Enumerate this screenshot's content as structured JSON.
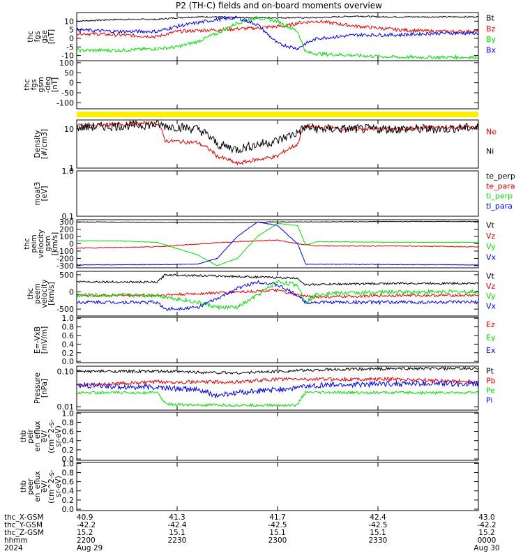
{
  "title": "P2 (TH-C) fields and on-board moments overview",
  "colors": {
    "black": "#000000",
    "red": "#e00000",
    "green": "#00dd00",
    "blue": "#0000e0",
    "yellow": "#ffee00"
  },
  "chart_data": [
    {
      "type": "line",
      "id": "fgs",
      "ylabel": [
        "thc",
        "fgs",
        "gse",
        "[nT]"
      ],
      "ylim": [
        -13,
        15
      ],
      "yticks": [
        -10,
        -5,
        0,
        5,
        10
      ],
      "series": [
        {
          "name": "Bt",
          "color": "black",
          "x": [
            0,
            0.05,
            0.1,
            0.2,
            0.25,
            0.3,
            0.35,
            0.4,
            0.5,
            0.6,
            0.7,
            0.75,
            0.8,
            0.9,
            1
          ],
          "y": [
            10,
            10.5,
            11,
            11,
            12,
            12.5,
            12.5,
            12,
            12,
            12,
            13,
            12.5,
            12.5,
            12.5,
            12.5
          ],
          "noise": 0.4
        },
        {
          "name": "Bz",
          "color": "red",
          "x": [
            0,
            0.1,
            0.2,
            0.25,
            0.35,
            0.45,
            0.5,
            0.52,
            0.55,
            0.6,
            0.7,
            0.8,
            0.9,
            1
          ],
          "y": [
            3,
            2,
            1,
            4,
            5,
            6,
            7,
            7,
            9,
            10,
            7,
            5,
            4,
            4
          ],
          "noise": 1.0
        },
        {
          "name": "By",
          "color": "green",
          "x": [
            0,
            0.1,
            0.2,
            0.25,
            0.3,
            0.35,
            0.4,
            0.45,
            0.5,
            0.55,
            0.57,
            0.6,
            0.7,
            0.8,
            0.9,
            1
          ],
          "y": [
            -7,
            -7,
            -6,
            -5,
            -2,
            3,
            9,
            12,
            10,
            4,
            -8,
            -9,
            -10,
            -11,
            -11,
            -11
          ],
          "noise": 1.0
        },
        {
          "name": "Bx",
          "color": "blue",
          "x": [
            0,
            0.1,
            0.2,
            0.25,
            0.3,
            0.35,
            0.4,
            0.45,
            0.5,
            0.55,
            0.57,
            0.6,
            0.7,
            0.8,
            0.9,
            1
          ],
          "y": [
            5,
            4,
            4,
            7,
            9,
            11,
            12,
            8,
            -3,
            -6,
            -3,
            0,
            2,
            2,
            3,
            3
          ],
          "noise": 1.0
        }
      ]
    },
    {
      "type": "line",
      "id": "fgs_deg",
      "ylabel": [
        "thc",
        "fgs",
        "gsm",
        "-deg",
        "[nT]"
      ],
      "ylim": [
        -130,
        110
      ],
      "yticks": [
        -100,
        -50,
        0,
        50,
        100
      ],
      "series": []
    },
    {
      "type": "bar",
      "id": "mode_bar",
      "series": [
        {
          "name": "",
          "color": "yellow",
          "x": [
            0,
            1
          ],
          "y": [
            1,
            1
          ]
        }
      ]
    },
    {
      "type": "line",
      "id": "density",
      "ylabel": [
        "Density",
        "[#/cm3]"
      ],
      "scale": "log",
      "ylim": [
        1,
        17
      ],
      "yticks": [
        1,
        10
      ],
      "series": [
        {
          "name": "Ne",
          "color": "red",
          "x": [
            0,
            0.1,
            0.2,
            0.22,
            0.3,
            0.35,
            0.4,
            0.5,
            0.55,
            0.57,
            0.6,
            0.7,
            0.8,
            0.9,
            1
          ],
          "y": [
            12,
            13,
            14,
            5,
            4.5,
            2,
            1.3,
            2,
            4,
            12,
            11,
            10,
            10,
            11,
            11
          ],
          "noise": 0.05
        },
        {
          "name": "Ni",
          "color": "black",
          "x": [
            0,
            0.1,
            0.2,
            0.22,
            0.3,
            0.35,
            0.4,
            0.5,
            0.55,
            0.57,
            0.6,
            0.7,
            0.8,
            0.9,
            1
          ],
          "y": [
            11,
            12,
            13,
            12,
            10,
            4,
            3,
            5,
            8,
            11,
            10,
            10,
            10,
            10,
            11
          ],
          "noise": 0.12
        }
      ]
    },
    {
      "type": "line",
      "id": "temperature",
      "ylabel": [
        "moat3",
        "[eV]"
      ],
      "scale": "log",
      "ylim": [
        0.1,
        1
      ],
      "yticks": [
        0.1,
        1
      ],
      "series": [
        {
          "name": "te_perp",
          "color": "black",
          "x": [],
          "y": []
        },
        {
          "name": "te_para",
          "color": "red",
          "x": [],
          "y": []
        },
        {
          "name": "ti_perp",
          "color": "green",
          "x": [],
          "y": []
        },
        {
          "name": "ti_para",
          "color": "blue",
          "x": [],
          "y": []
        }
      ]
    },
    {
      "type": "line",
      "id": "peim_velocity",
      "ylabel": [
        "thc",
        "peim",
        "velocity",
        "gsm",
        "[km/s]"
      ],
      "ylim": [
        -330,
        330
      ],
      "yticks": [
        -300,
        -200,
        -100,
        0,
        100,
        200,
        300
      ],
      "series": [
        {
          "name": "Vt",
          "color": "black",
          "x": [
            0,
            0.2,
            0.4,
            0.5,
            0.6,
            0.8,
            1
          ],
          "y": [
            300,
            295,
            290,
            300,
            300,
            305,
            305
          ],
          "noise": 4
        },
        {
          "name": "Vz",
          "color": "red",
          "x": [
            0,
            0.2,
            0.4,
            0.5,
            0.55,
            0.6,
            0.8,
            1
          ],
          "y": [
            -60,
            -40,
            30,
            50,
            0,
            -30,
            -30,
            -40
          ],
          "noise": 6
        },
        {
          "name": "Vy",
          "color": "green",
          "x": [
            0,
            0.1,
            0.2,
            0.3,
            0.35,
            0.4,
            0.45,
            0.5,
            0.55,
            0.57,
            0.6,
            0.8,
            1
          ],
          "y": [
            40,
            40,
            20,
            -150,
            -300,
            -200,
            100,
            280,
            250,
            -20,
            30,
            20,
            20
          ],
          "noise": 4
        },
        {
          "name": "Vx",
          "color": "blue",
          "x": [
            0,
            0.2,
            0.3,
            0.35,
            0.4,
            0.45,
            0.5,
            0.55,
            0.57,
            0.6,
            0.8,
            1
          ],
          "y": [
            -290,
            -285,
            -280,
            -200,
            100,
            300,
            250,
            0,
            -280,
            -280,
            -285,
            -290
          ],
          "noise": 4
        }
      ]
    },
    {
      "type": "line",
      "id": "peem_velocity",
      "ylabel": [
        "thc",
        "peem",
        "velocity",
        "[km/s]"
      ],
      "ylim": [
        -700,
        600
      ],
      "yticks": [
        -500,
        0,
        500
      ],
      "series": [
        {
          "name": "Vt",
          "color": "black",
          "x": [
            0,
            0.2,
            0.22,
            0.4,
            0.55,
            0.57,
            0.6,
            0.8,
            1
          ],
          "y": [
            300,
            280,
            500,
            450,
            400,
            200,
            220,
            250,
            250
          ],
          "noise": 30
        },
        {
          "name": "Vz",
          "color": "red",
          "x": [
            0,
            0.2,
            0.4,
            0.5,
            0.55,
            0.6,
            0.8,
            1
          ],
          "y": [
            -100,
            -100,
            0,
            50,
            -100,
            -150,
            -100,
            -100
          ],
          "noise": 40
        },
        {
          "name": "Vy",
          "color": "green",
          "x": [
            0,
            0.2,
            0.3,
            0.35,
            0.4,
            0.45,
            0.5,
            0.55,
            0.57,
            0.6,
            0.8,
            1
          ],
          "y": [
            -100,
            -100,
            -300,
            -450,
            -450,
            -100,
            300,
            200,
            -300,
            -50,
            0,
            0
          ],
          "noise": 60
        },
        {
          "name": "Vx",
          "color": "blue",
          "x": [
            0,
            0.2,
            0.22,
            0.3,
            0.35,
            0.4,
            0.45,
            0.5,
            0.55,
            0.57,
            0.6,
            0.8,
            1
          ],
          "y": [
            -300,
            -300,
            -500,
            -450,
            -200,
            100,
            300,
            200,
            -100,
            -300,
            -300,
            -300,
            -300
          ],
          "noise": 50
        }
      ]
    },
    {
      "type": "line",
      "id": "efield",
      "ylabel": [
        "E=-VxB",
        "[mV/m]"
      ],
      "ylim": [
        -0.03,
        1.02
      ],
      "yticks": [
        0,
        0.2,
        0.4,
        0.6,
        0.8,
        1.0
      ],
      "series": [
        {
          "name": "Ez",
          "color": "red",
          "x": [],
          "y": []
        },
        {
          "name": "Ey",
          "color": "green",
          "x": [],
          "y": []
        },
        {
          "name": "Ex",
          "color": "blue",
          "x": [],
          "y": []
        }
      ]
    },
    {
      "type": "line",
      "id": "pressure",
      "ylabel": [
        "Pressure",
        "[nPa]"
      ],
      "scale": "log",
      "ylim": [
        0.008,
        0.14
      ],
      "yticks": [
        0.01,
        0.1
      ],
      "series": [
        {
          "name": "Pt",
          "color": "black",
          "x": [
            0,
            0.2,
            0.4,
            0.6,
            0.8,
            1
          ],
          "y": [
            0.1,
            0.1,
            0.09,
            0.11,
            0.12,
            0.12
          ],
          "noise": 0.04
        },
        {
          "name": "Pb",
          "color": "red",
          "x": [
            0,
            0.2,
            0.4,
            0.5,
            0.6,
            0.8,
            1
          ],
          "y": [
            0.04,
            0.05,
            0.05,
            0.06,
            0.06,
            0.06,
            0.05
          ],
          "noise": 0.05
        },
        {
          "name": "Pe",
          "color": "green",
          "x": [
            0,
            0.2,
            0.22,
            0.3,
            0.55,
            0.57,
            0.8,
            1
          ],
          "y": [
            0.025,
            0.025,
            0.012,
            0.011,
            0.011,
            0.025,
            0.025,
            0.025
          ],
          "noise": 0.04
        },
        {
          "name": "Pi",
          "color": "blue",
          "x": [
            0,
            0.2,
            0.3,
            0.35,
            0.4,
            0.5,
            0.6,
            0.8,
            1
          ],
          "y": [
            0.04,
            0.035,
            0.03,
            0.02,
            0.025,
            0.03,
            0.04,
            0.045,
            0.045
          ],
          "noise": 0.08
        }
      ]
    },
    {
      "type": "line",
      "id": "peir_eflux",
      "ylabel": [
        "thb",
        "peir",
        "en_eflux",
        "eV/",
        "(cm^2-s-",
        "sr-eV)"
      ],
      "ylim": [
        -0.03,
        1.02
      ],
      "yticks": [
        0,
        0.2,
        0.4,
        0.6,
        0.8,
        1.0
      ],
      "series": []
    },
    {
      "type": "line",
      "id": "peer_eflux",
      "ylabel": [
        "thb",
        "peer",
        "en_eflux",
        "eV/",
        "(cm^2-s-",
        "sr-eV)"
      ],
      "ylim": [
        -0.03,
        1.02
      ],
      "yticks": [
        0,
        0.2,
        0.4,
        0.6,
        0.8,
        1.0
      ],
      "series": []
    }
  ],
  "footer": {
    "row_labels": [
      "thc_X-GSM",
      "thc_Y-GSM",
      "thc_Z-GSM",
      "hhmm",
      "2024"
    ],
    "ticks": [
      {
        "rows": [
          "40.9",
          "-42.2",
          "15.2",
          "2200",
          "Aug 29"
        ]
      },
      {
        "rows": [
          "41.3",
          "-42.4",
          "15.1",
          "2230",
          ""
        ]
      },
      {
        "rows": [
          "41.7",
          "-42.5",
          "15.1",
          "2300",
          ""
        ]
      },
      {
        "rows": [
          "42.4",
          "-42.5",
          "15.1",
          "2330",
          ""
        ]
      },
      {
        "rows": [
          "43.0",
          "-42.2",
          "15.2",
          "0000",
          "Aug 30"
        ]
      }
    ]
  }
}
